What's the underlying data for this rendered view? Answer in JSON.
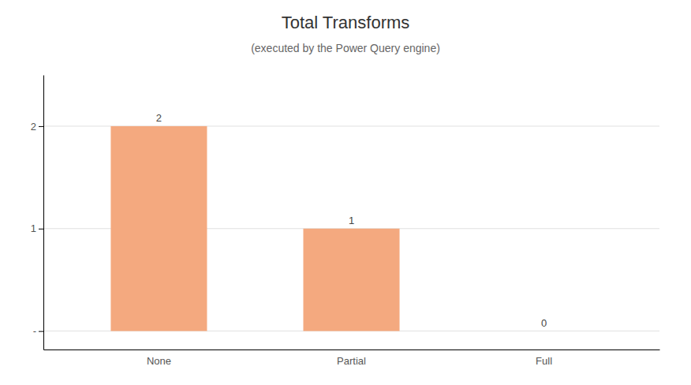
{
  "chart_data": {
    "type": "bar",
    "title": "Total Transforms",
    "subtitle": "(executed by the Power Query engine)",
    "categories": [
      "None",
      "Partial",
      "Full"
    ],
    "values": [
      2,
      1,
      0
    ],
    "color": "#F4A97F",
    "ylim": [
      -0.18,
      2.5
    ],
    "yticks": [
      {
        "value": 0,
        "label": "-"
      },
      1,
      2
    ],
    "grid": true,
    "data_labels": true
  }
}
